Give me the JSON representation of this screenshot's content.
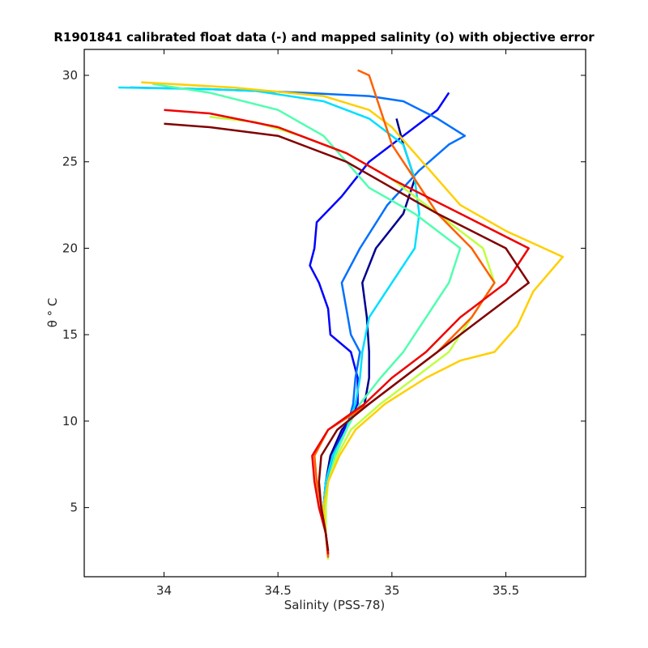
{
  "chart_data": {
    "type": "line",
    "title": "R1901841 calibrated float data (-) and mapped salinity (o) with objective error",
    "xlabel": "Salinity (PSS-78)",
    "ylabel": "θ ° C",
    "xlim": [
      33.65,
      35.85
    ],
    "ylim": [
      1.0,
      31.5
    ],
    "xticks": [
      34,
      34.5,
      35,
      35.5
    ],
    "yticks": [
      5,
      10,
      15,
      20,
      25,
      30
    ],
    "grid": false,
    "legend": "none",
    "colormap": [
      "#00008f",
      "#0000ff",
      "#0070ff",
      "#00dfff",
      "#50ffaf",
      "#bfff40",
      "#ffcf00",
      "#ff6000",
      "#ef0000",
      "#800000"
    ],
    "series": [
      {
        "values": [
          [
            34.72,
            2.2
          ],
          [
            34.71,
            3.5
          ],
          [
            34.7,
            5.0
          ],
          [
            34.71,
            6.5
          ],
          [
            34.73,
            8.0
          ],
          [
            34.78,
            9.5
          ],
          [
            34.88,
            11.0
          ],
          [
            34.9,
            12.5
          ],
          [
            34.9,
            14.0
          ],
          [
            34.89,
            16.0
          ],
          [
            34.87,
            18.0
          ],
          [
            34.93,
            20.0
          ],
          [
            35.05,
            22.0
          ],
          [
            35.1,
            24.0
          ],
          [
            35.05,
            26.0
          ],
          [
            35.02,
            27.5
          ]
        ]
      },
      {
        "values": [
          [
            34.72,
            2.3
          ],
          [
            34.71,
            3.5
          ],
          [
            34.7,
            5.0
          ],
          [
            34.71,
            6.5
          ],
          [
            34.74,
            8.0
          ],
          [
            34.79,
            9.5
          ],
          [
            34.85,
            11.0
          ],
          [
            34.85,
            12.5
          ],
          [
            34.82,
            14.0
          ],
          [
            34.73,
            15.0
          ],
          [
            34.72,
            16.5
          ],
          [
            34.68,
            18.0
          ],
          [
            34.64,
            19.0
          ],
          [
            34.66,
            20.0
          ],
          [
            34.67,
            21.5
          ],
          [
            34.78,
            23.0
          ],
          [
            34.9,
            25.0
          ],
          [
            35.1,
            27.0
          ],
          [
            35.2,
            28.0
          ],
          [
            35.25,
            29.0
          ]
        ]
      },
      {
        "values": [
          [
            34.72,
            2.4
          ],
          [
            34.71,
            3.5
          ],
          [
            34.71,
            5.0
          ],
          [
            34.71,
            6.5
          ],
          [
            34.75,
            8.0
          ],
          [
            34.8,
            9.5
          ],
          [
            34.83,
            11.0
          ],
          [
            34.84,
            12.5
          ],
          [
            34.86,
            14.0
          ],
          [
            34.82,
            15.0
          ],
          [
            34.8,
            16.5
          ],
          [
            34.78,
            18.0
          ],
          [
            34.86,
            20.0
          ],
          [
            34.98,
            22.5
          ],
          [
            35.12,
            24.5
          ],
          [
            35.25,
            26.0
          ],
          [
            35.32,
            26.5
          ],
          [
            35.2,
            27.5
          ],
          [
            35.05,
            28.5
          ],
          [
            34.9,
            28.8
          ],
          [
            34.6,
            29.0
          ],
          [
            34.2,
            29.2
          ],
          [
            33.85,
            29.3
          ]
        ]
      },
      {
        "values": [
          [
            34.72,
            2.3
          ],
          [
            34.71,
            3.5
          ],
          [
            34.7,
            5.0
          ],
          [
            34.71,
            6.5
          ],
          [
            34.74,
            8.0
          ],
          [
            34.8,
            9.5
          ],
          [
            34.84,
            11.0
          ],
          [
            34.86,
            12.5
          ],
          [
            34.87,
            14.0
          ],
          [
            34.9,
            16.0
          ],
          [
            35.0,
            18.0
          ],
          [
            35.1,
            20.0
          ],
          [
            35.12,
            22.0
          ],
          [
            35.1,
            24.0
          ],
          [
            35.05,
            26.0
          ],
          [
            34.9,
            27.5
          ],
          [
            34.7,
            28.5
          ],
          [
            34.4,
            29.1
          ],
          [
            34.2,
            29.2
          ],
          [
            33.8,
            29.3
          ]
        ]
      },
      {
        "values": [
          [
            34.72,
            2.2
          ],
          [
            34.71,
            3.5
          ],
          [
            34.7,
            5.0
          ],
          [
            34.72,
            6.5
          ],
          [
            34.75,
            8.0
          ],
          [
            34.8,
            9.5
          ],
          [
            34.86,
            11.0
          ],
          [
            34.95,
            12.5
          ],
          [
            35.05,
            14.0
          ],
          [
            35.15,
            16.0
          ],
          [
            35.25,
            18.0
          ],
          [
            35.3,
            20.0
          ],
          [
            35.1,
            22.0
          ],
          [
            34.9,
            23.5
          ],
          [
            34.8,
            25.0
          ],
          [
            34.7,
            26.5
          ],
          [
            34.5,
            28.0
          ],
          [
            34.2,
            29.0
          ],
          [
            33.95,
            29.5
          ]
        ]
      },
      {
        "values": [
          [
            34.72,
            2.0
          ],
          [
            34.71,
            3.5
          ],
          [
            34.71,
            5.0
          ],
          [
            34.72,
            6.5
          ],
          [
            34.76,
            8.0
          ],
          [
            34.82,
            9.5
          ],
          [
            34.95,
            11.0
          ],
          [
            35.1,
            12.5
          ],
          [
            35.25,
            14.0
          ],
          [
            35.35,
            16.0
          ],
          [
            35.45,
            18.0
          ],
          [
            35.4,
            20.0
          ],
          [
            35.2,
            22.0
          ],
          [
            35.0,
            24.0
          ],
          [
            34.8,
            25.5
          ],
          [
            34.6,
            26.5
          ],
          [
            34.4,
            27.3
          ],
          [
            34.2,
            27.6
          ]
        ]
      },
      {
        "values": [
          [
            34.72,
            2.3
          ],
          [
            34.71,
            3.5
          ],
          [
            34.7,
            5.0
          ],
          [
            34.72,
            6.5
          ],
          [
            34.77,
            8.0
          ],
          [
            34.84,
            9.5
          ],
          [
            34.97,
            11.0
          ],
          [
            35.15,
            12.5
          ],
          [
            35.3,
            13.5
          ],
          [
            35.45,
            14.0
          ],
          [
            35.55,
            15.5
          ],
          [
            35.62,
            17.5
          ],
          [
            35.75,
            19.5
          ],
          [
            35.5,
            21.0
          ],
          [
            35.3,
            22.5
          ],
          [
            35.2,
            24.0
          ],
          [
            35.1,
            25.5
          ],
          [
            35.0,
            27.0
          ],
          [
            34.9,
            28.0
          ],
          [
            34.7,
            28.8
          ],
          [
            34.3,
            29.3
          ],
          [
            33.9,
            29.6
          ]
        ]
      },
      {
        "values": [
          [
            34.72,
            2.1
          ],
          [
            34.71,
            3.5
          ],
          [
            34.69,
            5.0
          ],
          [
            34.67,
            6.5
          ],
          [
            34.66,
            8.0
          ],
          [
            34.72,
            9.5
          ],
          [
            34.9,
            11.0
          ],
          [
            35.05,
            12.5
          ],
          [
            35.2,
            14.0
          ],
          [
            35.35,
            16.0
          ],
          [
            35.45,
            18.0
          ],
          [
            35.35,
            20.0
          ],
          [
            35.2,
            22.0
          ],
          [
            35.1,
            24.0
          ],
          [
            35.0,
            26.0
          ],
          [
            34.95,
            28.0
          ],
          [
            34.9,
            30.0
          ],
          [
            34.85,
            30.3
          ]
        ]
      },
      {
        "values": [
          [
            34.72,
            2.3
          ],
          [
            34.71,
            3.5
          ],
          [
            34.68,
            5.0
          ],
          [
            34.66,
            6.5
          ],
          [
            34.65,
            8.0
          ],
          [
            34.72,
            9.5
          ],
          [
            34.88,
            11.0
          ],
          [
            35.0,
            12.5
          ],
          [
            35.15,
            14.0
          ],
          [
            35.3,
            16.0
          ],
          [
            35.5,
            18.0
          ],
          [
            35.6,
            20.0
          ],
          [
            35.3,
            22.0
          ],
          [
            35.0,
            24.0
          ],
          [
            34.8,
            25.5
          ],
          [
            34.5,
            27.0
          ],
          [
            34.2,
            27.8
          ],
          [
            34.0,
            28.0
          ]
        ]
      },
      {
        "values": [
          [
            34.72,
            2.5
          ],
          [
            34.71,
            3.5
          ],
          [
            34.69,
            5.0
          ],
          [
            34.68,
            6.5
          ],
          [
            34.69,
            8.0
          ],
          [
            34.76,
            9.5
          ],
          [
            34.9,
            11.0
          ],
          [
            35.05,
            12.5
          ],
          [
            35.2,
            14.0
          ],
          [
            35.4,
            16.0
          ],
          [
            35.6,
            18.0
          ],
          [
            35.5,
            20.0
          ],
          [
            35.2,
            22.0
          ],
          [
            35.0,
            23.5
          ],
          [
            34.8,
            25.0
          ],
          [
            34.5,
            26.5
          ],
          [
            34.2,
            27.0
          ],
          [
            34.0,
            27.2
          ]
        ]
      }
    ]
  }
}
